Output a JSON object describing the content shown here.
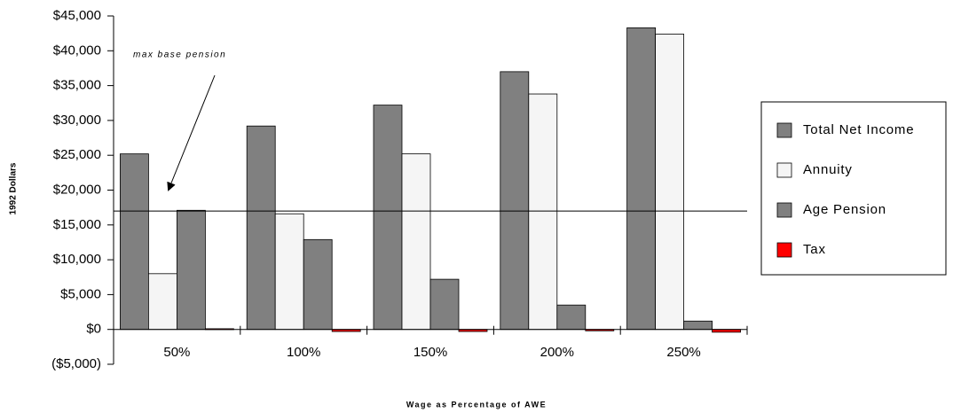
{
  "chart_data": {
    "type": "bar",
    "x_label": "Wage as Percentage of AWE",
    "y_label": "1992 Dollars",
    "categories": [
      "50%",
      "100%",
      "150%",
      "200%",
      "250%"
    ],
    "series": [
      {
        "name": "Total Net Income",
        "color": "#808080",
        "values": [
          25200,
          29200,
          32200,
          37000,
          43300
        ]
      },
      {
        "name": "Annuity",
        "color": "#f5f5f5",
        "values": [
          8000,
          16600,
          25200,
          33800,
          42400
        ]
      },
      {
        "name": "Age Pension",
        "color": "#808080",
        "values": [
          17100,
          12900,
          7200,
          3500,
          1200
        ]
      },
      {
        "name": "Tax",
        "color": "#ff0000",
        "values": [
          100,
          -300,
          -300,
          -200,
          -400
        ]
      }
    ],
    "reference_line": {
      "value": 17000,
      "label": "max base pension"
    },
    "ylim": [
      -5000,
      45000
    ],
    "yticks": [
      {
        "value": -5000,
        "label": "($5,000)"
      },
      {
        "value": 0,
        "label": "$0"
      },
      {
        "value": 5000,
        "label": "$5,000"
      },
      {
        "value": 10000,
        "label": "$10,000"
      },
      {
        "value": 15000,
        "label": "$15,000"
      },
      {
        "value": 20000,
        "label": "$20,000"
      },
      {
        "value": 25000,
        "label": "$25,000"
      },
      {
        "value": 30000,
        "label": "$30,000"
      },
      {
        "value": 35000,
        "label": "$35,000"
      },
      {
        "value": 40000,
        "label": "$40,000"
      },
      {
        "value": 45000,
        "label": "$45,000"
      }
    ],
    "legend": "right"
  }
}
